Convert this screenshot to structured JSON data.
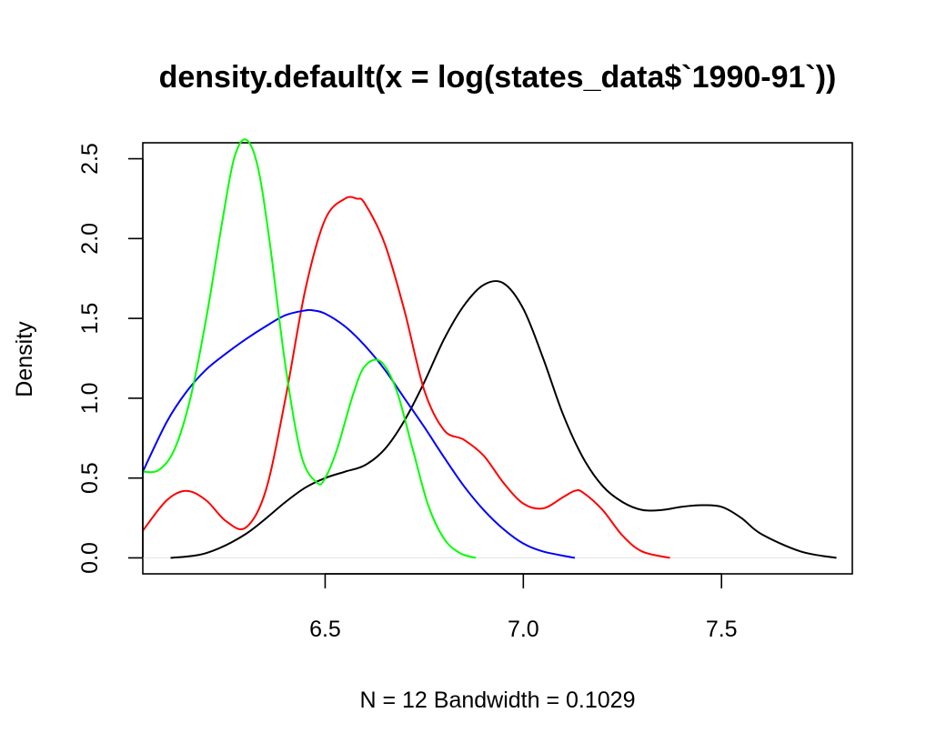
{
  "chart_data": {
    "type": "line",
    "title": "density.default(x = log(states_data$`1990-91`))",
    "xlabel": "N = 12   Bandwidth = 0.1029",
    "ylabel": "Density",
    "xlim": [
      6.04,
      7.83
    ],
    "ylim": [
      -0.1,
      2.6
    ],
    "x_ticks": [
      6.5,
      7.0,
      7.5
    ],
    "x_tick_labels": [
      "6.5",
      "7.0",
      "7.5"
    ],
    "y_ticks": [
      0.0,
      0.5,
      1.0,
      1.5,
      2.0,
      2.5
    ],
    "y_tick_labels": [
      "0.0",
      "0.5",
      "1.0",
      "1.5",
      "2.0",
      "2.5"
    ],
    "grid": false,
    "legend": "none",
    "zero_line": true,
    "series": [
      {
        "color": "#000000",
        "x": [
          6.11,
          6.2,
          6.3,
          6.4,
          6.45,
          6.5,
          6.55,
          6.6,
          6.65,
          6.7,
          6.75,
          6.8,
          6.85,
          6.9,
          6.95,
          7.0,
          7.05,
          7.1,
          7.15,
          7.2,
          7.25,
          7.3,
          7.35,
          7.4,
          7.45,
          7.5,
          7.55,
          7.6,
          7.7,
          7.79
        ],
        "y": [
          0.0,
          0.03,
          0.15,
          0.35,
          0.44,
          0.5,
          0.54,
          0.58,
          0.68,
          0.86,
          1.1,
          1.37,
          1.58,
          1.71,
          1.72,
          1.56,
          1.25,
          0.9,
          0.63,
          0.45,
          0.35,
          0.3,
          0.3,
          0.32,
          0.33,
          0.32,
          0.25,
          0.15,
          0.04,
          0.0
        ]
      },
      {
        "color": "#ff0000",
        "x": [
          6.04,
          6.1,
          6.15,
          6.2,
          6.25,
          6.3,
          6.35,
          6.4,
          6.45,
          6.5,
          6.55,
          6.58,
          6.6,
          6.65,
          6.7,
          6.75,
          6.8,
          6.85,
          6.9,
          6.95,
          7.0,
          7.05,
          7.1,
          7.13,
          7.15,
          7.2,
          7.25,
          7.3,
          7.37
        ],
        "y": [
          0.17,
          0.36,
          0.42,
          0.36,
          0.23,
          0.19,
          0.42,
          1.0,
          1.68,
          2.12,
          2.25,
          2.25,
          2.22,
          1.97,
          1.55,
          1.05,
          0.8,
          0.74,
          0.64,
          0.47,
          0.34,
          0.31,
          0.38,
          0.42,
          0.41,
          0.3,
          0.14,
          0.04,
          0.0
        ]
      },
      {
        "color": "#0000ff",
        "x": [
          6.04,
          6.1,
          6.15,
          6.2,
          6.25,
          6.3,
          6.35,
          6.4,
          6.45,
          6.47,
          6.5,
          6.55,
          6.6,
          6.65,
          6.7,
          6.75,
          6.8,
          6.85,
          6.9,
          6.95,
          7.0,
          7.05,
          7.13
        ],
        "y": [
          0.54,
          0.85,
          1.04,
          1.18,
          1.28,
          1.37,
          1.45,
          1.52,
          1.55,
          1.55,
          1.53,
          1.45,
          1.33,
          1.18,
          1.0,
          0.82,
          0.63,
          0.45,
          0.3,
          0.18,
          0.09,
          0.04,
          0.0
        ]
      },
      {
        "color": "#00ff00",
        "x": [
          6.04,
          6.08,
          6.12,
          6.16,
          6.2,
          6.24,
          6.27,
          6.3,
          6.33,
          6.36,
          6.4,
          6.44,
          6.48,
          6.5,
          6.53,
          6.57,
          6.6,
          6.64,
          6.68,
          6.72,
          6.76,
          6.8,
          6.84,
          6.88
        ],
        "y": [
          0.54,
          0.55,
          0.68,
          1.0,
          1.5,
          2.1,
          2.5,
          2.62,
          2.45,
          1.98,
          1.2,
          0.64,
          0.47,
          0.5,
          0.68,
          1.02,
          1.2,
          1.23,
          1.05,
          0.69,
          0.33,
          0.12,
          0.03,
          0.0
        ]
      }
    ]
  }
}
